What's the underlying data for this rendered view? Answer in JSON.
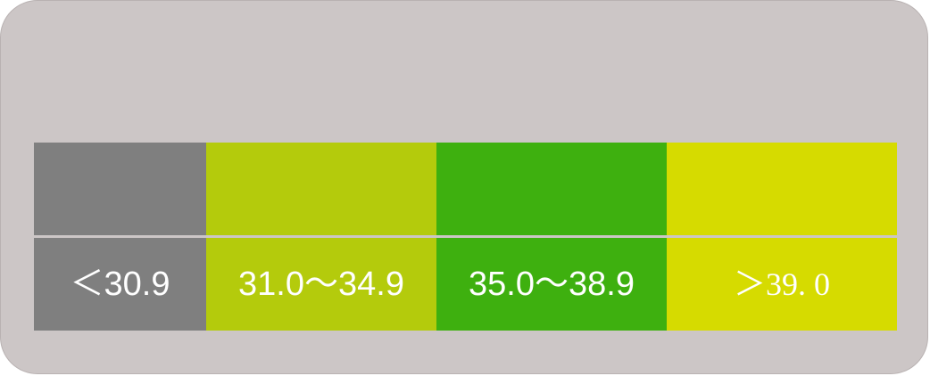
{
  "legend": {
    "ranges": [
      {
        "label": "＜30.9",
        "color": "#7f7f7f",
        "font": "sans"
      },
      {
        "label": "31.0～34.9",
        "color": "#b4cb0c",
        "font": "sans"
      },
      {
        "label": "35.0～38.9",
        "color": "#3eb00f",
        "font": "sans"
      },
      {
        "label": "＞39. 0",
        "color": "#d6db00",
        "font": "serif"
      }
    ]
  }
}
